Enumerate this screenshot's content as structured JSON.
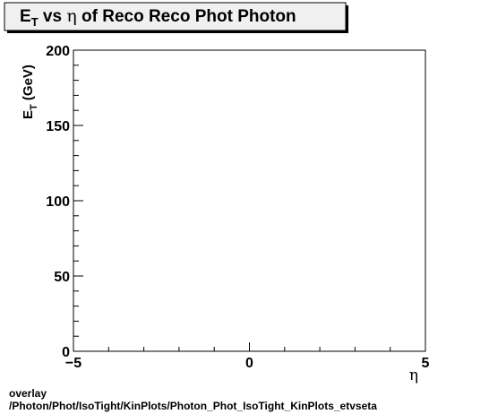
{
  "chart_data": {
    "type": "scatter",
    "title": {
      "prefix": "E",
      "subscript": "T",
      "middle": " vs ",
      "symbol": "η",
      "suffix": " of Reco Reco Phot Photon"
    },
    "xlabel": "η",
    "ylabel": {
      "prefix": "E",
      "subscript": "T",
      "suffix": " (GeV)"
    },
    "xlim": [
      -5,
      5
    ],
    "ylim": [
      0,
      200
    ],
    "x_ticks": [
      {
        "value": -5,
        "label": "−5"
      },
      {
        "value": 0,
        "label": "0"
      },
      {
        "value": 5,
        "label": "5"
      }
    ],
    "y_ticks": [
      {
        "value": 0,
        "label": "0"
      },
      {
        "value": 50,
        "label": "50"
      },
      {
        "value": 100,
        "label": "100"
      },
      {
        "value": 150,
        "label": "150"
      },
      {
        "value": 200,
        "label": "200"
      }
    ],
    "x_minor_step": 1,
    "y_minor_step": 10,
    "grid": false,
    "legend": "none",
    "series": [
      {
        "x": [],
        "y": []
      }
    ]
  },
  "footer": {
    "line1": "overlay",
    "line2": "/Photon/Phot/IsoTight/KinPlots/Photon_Phot_IsoTight_KinPlots_etvseta"
  },
  "colors": {
    "frame": "#000000",
    "title_box_fill": "#f0f0f0",
    "title_box_shadow": "#000000",
    "background": "#ffffff"
  }
}
